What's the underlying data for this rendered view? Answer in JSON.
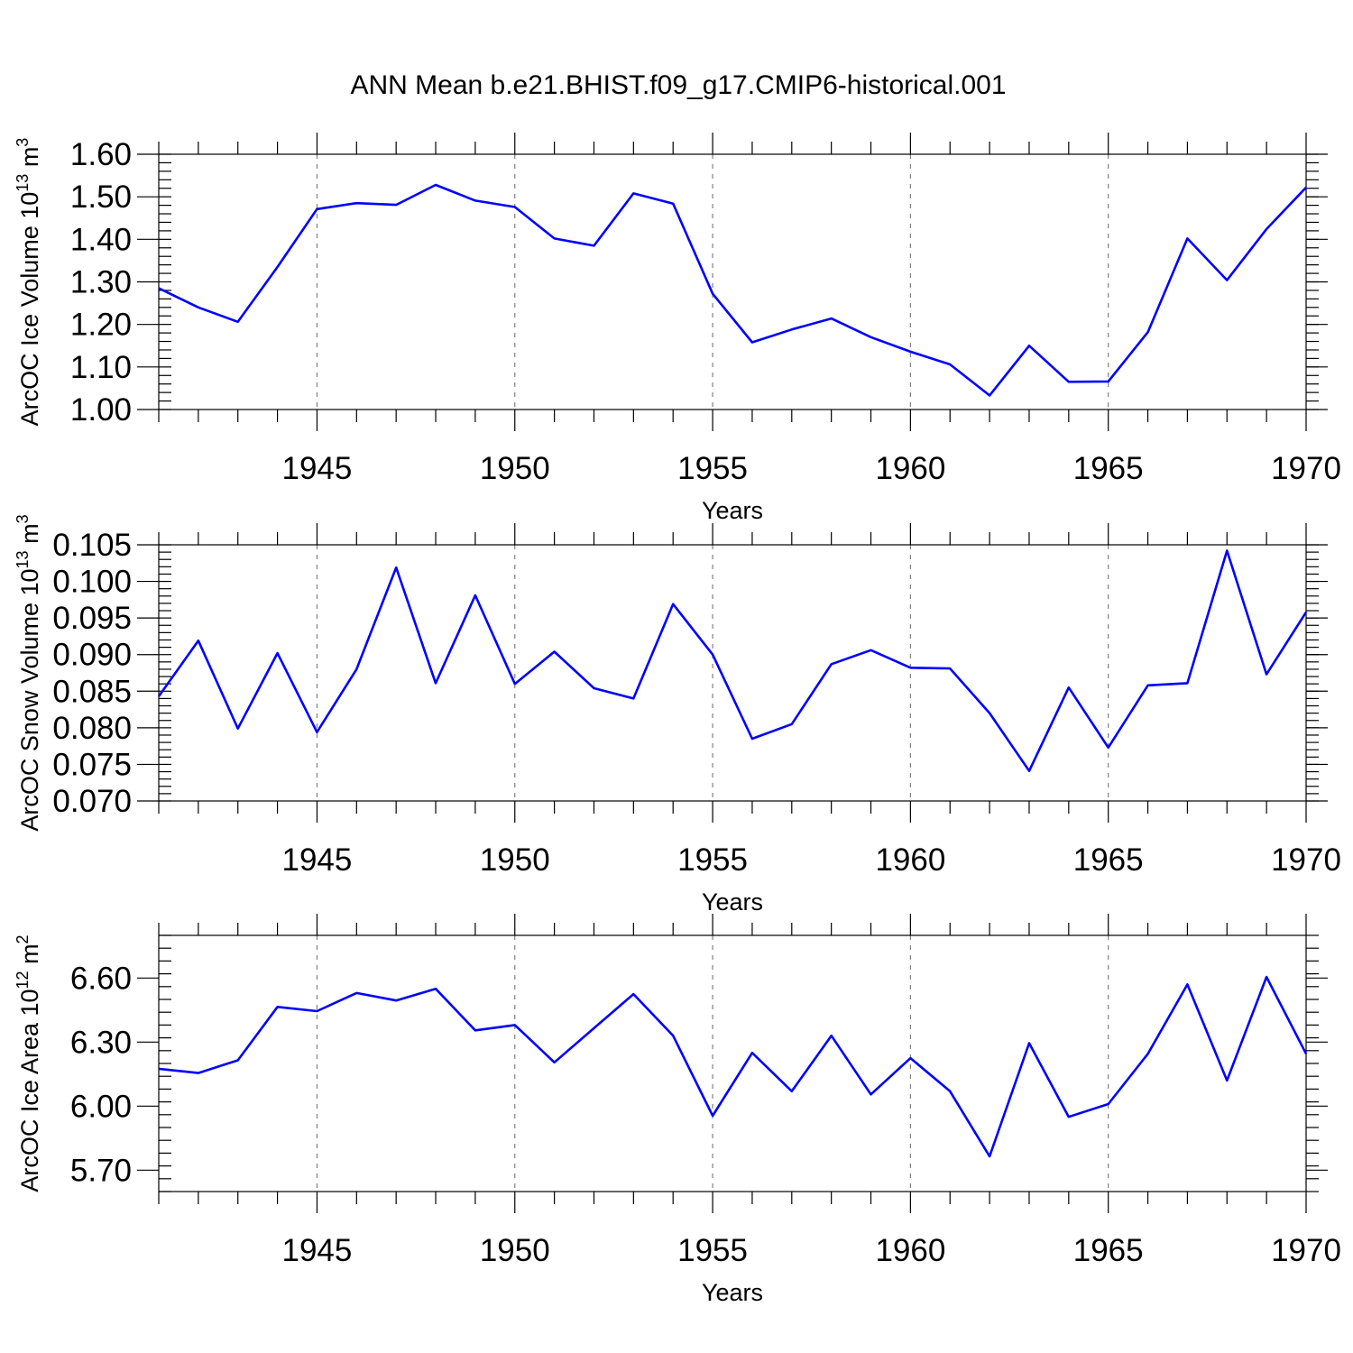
{
  "title": "ANN Mean b.e21.BHIST.f09_g17.CMIP6-historical.001",
  "colors": {
    "line": "#0000ff",
    "grid": "#808080",
    "axis": "#000000"
  },
  "chart_data": [
    {
      "type": "line",
      "title": "ANN Mean b.e21.BHIST.f09_g17.CMIP6-historical.001",
      "ylabel": "ArcOC Ice Volume 10",
      "ylabel_exp": "13",
      "ylabel_unit": " m",
      "ylabel_unit_exp": "3",
      "xlabel": "Years",
      "xlim": [
        1941,
        1970
      ],
      "ylim": [
        1.0,
        1.6
      ],
      "yticks": [
        1.0,
        1.1,
        1.2,
        1.3,
        1.4,
        1.5,
        1.6
      ],
      "ytick_labels": [
        "1.00",
        "1.10",
        "1.20",
        "1.30",
        "1.40",
        "1.50",
        "1.60"
      ],
      "yminor_step": 0.02,
      "xticks": [
        1945,
        1950,
        1955,
        1960,
        1965,
        1970
      ],
      "xtick_labels": [
        "1945",
        "1950",
        "1955",
        "1960",
        "1965",
        "1970"
      ],
      "grid": "x-dashed",
      "series": [
        {
          "name": "ArcOC Ice Volume",
          "x": [
            1941,
            1942,
            1943,
            1944,
            1945,
            1946,
            1947,
            1948,
            1949,
            1950,
            1951,
            1952,
            1953,
            1954,
            1955,
            1956,
            1957,
            1958,
            1959,
            1960,
            1961,
            1962,
            1963,
            1964,
            1965,
            1966,
            1967,
            1968,
            1969,
            1970
          ],
          "values": [
            1.285,
            1.24,
            1.206,
            1.335,
            1.471,
            1.485,
            1.481,
            1.528,
            1.491,
            1.476,
            1.402,
            1.385,
            1.508,
            1.484,
            1.272,
            1.158,
            1.188,
            1.214,
            1.17,
            1.136,
            1.106,
            1.033,
            1.15,
            1.065,
            1.066,
            1.182,
            1.402,
            1.304,
            1.424,
            1.522
          ]
        }
      ]
    },
    {
      "type": "line",
      "ylabel": "ArcOC Snow Volume 10",
      "ylabel_exp": "13",
      "ylabel_unit": " m",
      "ylabel_unit_exp": "3",
      "xlabel": "Years",
      "xlim": [
        1941,
        1970
      ],
      "ylim": [
        0.07,
        0.105
      ],
      "yticks": [
        0.07,
        0.075,
        0.08,
        0.085,
        0.09,
        0.095,
        0.1,
        0.105
      ],
      "ytick_labels": [
        "0.070",
        "0.075",
        "0.080",
        "0.085",
        "0.090",
        "0.095",
        "0.100",
        "0.105"
      ],
      "yminor_step": 0.001,
      "xticks": [
        1945,
        1950,
        1955,
        1960,
        1965,
        1970
      ],
      "xtick_labels": [
        "1945",
        "1950",
        "1955",
        "1960",
        "1965",
        "1970"
      ],
      "grid": "x-dashed",
      "series": [
        {
          "name": "ArcOC Snow Volume",
          "x": [
            1941,
            1942,
            1943,
            1944,
            1945,
            1946,
            1947,
            1948,
            1949,
            1950,
            1951,
            1952,
            1953,
            1954,
            1955,
            1956,
            1957,
            1958,
            1959,
            1960,
            1961,
            1962,
            1963,
            1964,
            1965,
            1966,
            1967,
            1968,
            1969,
            1970
          ],
          "values": [
            0.0843,
            0.0919,
            0.0799,
            0.0902,
            0.0794,
            0.088,
            0.1019,
            0.0861,
            0.0981,
            0.086,
            0.0904,
            0.0854,
            0.084,
            0.0969,
            0.09,
            0.0785,
            0.0805,
            0.0887,
            0.0906,
            0.0882,
            0.0881,
            0.082,
            0.0741,
            0.0855,
            0.0773,
            0.0858,
            0.0861,
            0.1042,
            0.0873,
            0.0958
          ]
        }
      ]
    },
    {
      "type": "line",
      "ylabel": "ArcOC Ice Area 10",
      "ylabel_exp": "12",
      "ylabel_unit": " m",
      "ylabel_unit_exp": "2",
      "xlabel": "Years",
      "xlim": [
        1941,
        1970
      ],
      "ylim": [
        5.6,
        6.8
      ],
      "yticks": [
        5.7,
        6.0,
        6.3,
        6.6
      ],
      "ytick_labels": [
        "5.70",
        "6.00",
        "6.30",
        "6.60"
      ],
      "yminor_step": 0.06,
      "xticks": [
        1945,
        1950,
        1955,
        1960,
        1965,
        1970
      ],
      "xtick_labels": [
        "1945",
        "1950",
        "1955",
        "1960",
        "1965",
        "1970"
      ],
      "grid": "x-dashed",
      "series": [
        {
          "name": "ArcOC Ice Area",
          "x": [
            1941,
            1942,
            1943,
            1944,
            1945,
            1946,
            1947,
            1948,
            1949,
            1950,
            1951,
            1952,
            1953,
            1954,
            1955,
            1956,
            1957,
            1958,
            1959,
            1960,
            1961,
            1962,
            1963,
            1964,
            1965,
            1966,
            1967,
            1968,
            1969,
            1970
          ],
          "values": [
            6.175,
            6.155,
            6.215,
            6.465,
            6.445,
            6.53,
            6.495,
            6.55,
            6.355,
            6.38,
            6.205,
            6.365,
            6.525,
            6.33,
            5.955,
            6.25,
            6.07,
            6.33,
            6.055,
            6.225,
            6.07,
            5.765,
            6.295,
            5.95,
            6.01,
            6.245,
            6.57,
            6.12,
            6.605,
            6.245
          ]
        }
      ]
    }
  ]
}
